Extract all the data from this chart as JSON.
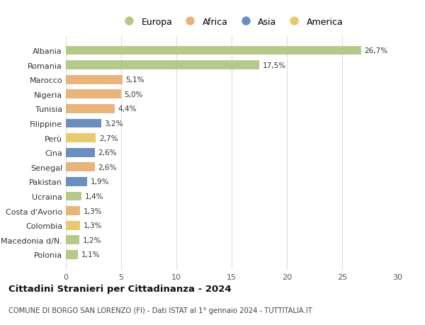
{
  "categories": [
    "Albania",
    "Romania",
    "Marocco",
    "Nigeria",
    "Tunisia",
    "Filippine",
    "Perù",
    "Cina",
    "Senegal",
    "Pakistan",
    "Ucraina",
    "Costa d'Avorio",
    "Colombia",
    "Macedonia d/N.",
    "Polonia"
  ],
  "values": [
    26.7,
    17.5,
    5.1,
    5.0,
    4.4,
    3.2,
    2.7,
    2.6,
    2.6,
    1.9,
    1.4,
    1.3,
    1.3,
    1.2,
    1.1
  ],
  "labels": [
    "26,7%",
    "17,5%",
    "5,1%",
    "5,0%",
    "4,4%",
    "3,2%",
    "2,7%",
    "2,6%",
    "2,6%",
    "1,9%",
    "1,4%",
    "1,3%",
    "1,3%",
    "1,2%",
    "1,1%"
  ],
  "continents": [
    "Europa",
    "Europa",
    "Africa",
    "Africa",
    "Africa",
    "Asia",
    "America",
    "Asia",
    "Africa",
    "Asia",
    "Europa",
    "Africa",
    "America",
    "Europa",
    "Europa"
  ],
  "continent_colors": {
    "Europa": "#b5c98a",
    "Africa": "#e8b47a",
    "Asia": "#6b8ec0",
    "America": "#e8ca6e"
  },
  "legend_order": [
    "Europa",
    "Africa",
    "Asia",
    "America"
  ],
  "title": "Cittadini Stranieri per Cittadinanza - 2024",
  "subtitle": "COMUNE DI BORGO SAN LORENZO (FI) - Dati ISTAT al 1° gennaio 2024 - TUTTITALIA.IT",
  "xlim": [
    0,
    30
  ],
  "xticks": [
    0,
    5,
    10,
    15,
    20,
    25,
    30
  ],
  "background_color": "#ffffff",
  "grid_color": "#dddddd"
}
